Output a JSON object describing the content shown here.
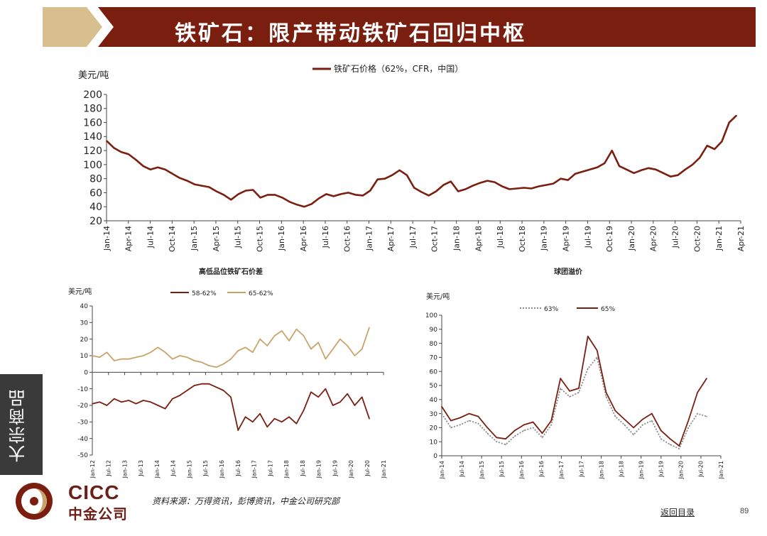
{
  "header": {
    "title": "铁矿石：限产带动铁矿石回归中枢"
  },
  "sidebar_tab": {
    "label": "大宗商品"
  },
  "colors": {
    "brand_dark_red": "#7a1f10",
    "banner_tan": "#d8c08e",
    "series_dark": "#7a1f10",
    "series_tan": "#c9a46a",
    "series_gray": "#8a8a8a"
  },
  "footer": {
    "logo_en": "CICC",
    "logo_cn": "中金公司",
    "source": "资料来源：万得资讯，彭博资讯，中金公司研究部",
    "back_link": "返回目录",
    "page_number": "89"
  },
  "chart_data": [
    {
      "id": "main",
      "type": "line",
      "title": "",
      "ylabel": "美元/吨",
      "xlabel": "",
      "ylim": [
        20,
        200
      ],
      "yticks": [
        20,
        40,
        60,
        80,
        100,
        120,
        140,
        160,
        180,
        200
      ],
      "xlim": [
        0,
        87
      ],
      "xticks": [
        "Jan-14",
        "Apr-14",
        "Jul-14",
        "Oct-14",
        "Jan-15",
        "Apr-15",
        "Jul-15",
        "Oct-15",
        "Jan-16",
        "Apr-16",
        "Jul-16",
        "Oct-16",
        "Jan-17",
        "Apr-17",
        "Jul-17",
        "Oct-17",
        "Jan-18",
        "Apr-18",
        "Jul-18",
        "Oct-18",
        "Jan-19",
        "Apr-19",
        "Jul-19",
        "Oct-19",
        "Jan-20",
        "Apr-20",
        "Jul-20",
        "Oct-20",
        "Jan-21",
        "Apr-21"
      ],
      "legend_position": "top-center",
      "series": [
        {
          "name": "铁矿石价格（62%，CFR，中国）",
          "color": "#7a1f10",
          "x": [
            0,
            1,
            2,
            3,
            4,
            5,
            6,
            7,
            8,
            9,
            10,
            11,
            12,
            13,
            14,
            15,
            16,
            17,
            18,
            19,
            20,
            21,
            22,
            23,
            24,
            25,
            26,
            27,
            28,
            29,
            30,
            31,
            32,
            33,
            34,
            35,
            36,
            37,
            38,
            39,
            40,
            41,
            42,
            43,
            44,
            45,
            46,
            47,
            48,
            49,
            50,
            51,
            52,
            53,
            54,
            55,
            56,
            57,
            58,
            59,
            60,
            61,
            62,
            63,
            64,
            65,
            66,
            67,
            68,
            69,
            70,
            71,
            72,
            73,
            74,
            75,
            76,
            77,
            78,
            79,
            80,
            81,
            82,
            83,
            84,
            85,
            86
          ],
          "values": [
            134,
            124,
            118,
            115,
            107,
            98,
            93,
            96,
            93,
            87,
            81,
            77,
            72,
            70,
            68,
            62,
            57,
            50,
            58,
            63,
            64,
            53,
            57,
            57,
            53,
            47,
            43,
            40,
            44,
            52,
            58,
            55,
            58,
            60,
            57,
            56,
            63,
            79,
            80,
            85,
            92,
            85,
            67,
            61,
            56,
            62,
            71,
            76,
            62,
            65,
            70,
            74,
            77,
            75,
            69,
            65,
            66,
            67,
            66,
            69,
            71,
            73,
            80,
            78,
            87,
            90,
            93,
            96,
            102,
            120,
            98,
            93,
            88,
            92,
            95,
            93,
            88,
            83,
            85,
            93,
            100,
            110,
            127,
            122,
            133,
            160,
            170
          ]
        }
      ]
    },
    {
      "id": "premium-spread",
      "type": "line",
      "title": "高低品位铁矿石价差",
      "ylabel": "美元/吨",
      "ylim": [
        -50,
        40
      ],
      "yticks": [
        -50,
        -40,
        -30,
        -20,
        -10,
        0,
        10,
        20,
        30,
        40
      ],
      "xticks": [
        "Jan-12",
        "Jul-12",
        "Jan-13",
        "Jul-13",
        "Jan-14",
        "Jul-14",
        "Jan-15",
        "Jul-15",
        "Jan-16",
        "Jul-16",
        "Jan-17",
        "Jul-17",
        "Jan-18",
        "Jul-18",
        "Jan-19",
        "Jul-19",
        "Jan-20",
        "Jul-20",
        "Jan-21"
      ],
      "legend_position": "top-right",
      "series": [
        {
          "name": "58-62%",
          "color": "#7a1f10",
          "x": [
            0,
            1,
            2,
            3,
            4,
            5,
            6,
            7,
            8,
            9,
            10,
            11,
            12,
            13,
            14,
            15,
            16,
            17,
            18,
            19,
            20,
            21,
            22,
            23,
            24,
            25,
            26,
            27,
            28,
            29,
            30,
            31,
            32,
            33,
            34,
            35,
            36,
            37,
            38
          ],
          "values": [
            -19,
            -18,
            -20,
            -16,
            -18,
            -17,
            -19,
            -17,
            -18,
            -20,
            -22,
            -16,
            -14,
            -11,
            -8,
            -7,
            -7,
            -9,
            -11,
            -15,
            -35,
            -27,
            -30,
            -25,
            -33,
            -28,
            -30,
            -27,
            -31,
            -23,
            -12,
            -15,
            -10,
            -20,
            -18,
            -13,
            -20,
            -15,
            -28
          ]
        },
        {
          "name": "65-62%",
          "color": "#c9a46a",
          "x": [
            0,
            1,
            2,
            3,
            4,
            5,
            6,
            7,
            8,
            9,
            10,
            11,
            12,
            13,
            14,
            15,
            16,
            17,
            18,
            19,
            20,
            21,
            22,
            23,
            24,
            25,
            26,
            27,
            28,
            29,
            30,
            31,
            32,
            33,
            34,
            35,
            36,
            37,
            38
          ],
          "values": [
            10,
            9,
            12,
            7,
            8,
            8,
            9,
            10,
            12,
            15,
            12,
            8,
            10,
            9,
            7,
            6,
            4,
            3,
            5,
            8,
            13,
            15,
            12,
            20,
            16,
            22,
            25,
            19,
            26,
            22,
            14,
            18,
            8,
            14,
            20,
            16,
            10,
            14,
            27
          ]
        }
      ]
    },
    {
      "id": "pellet-premium",
      "type": "line",
      "title": "球团溢价",
      "ylabel": "美元/吨",
      "ylim": [
        0,
        100
      ],
      "yticks": [
        0,
        10,
        20,
        30,
        40,
        50,
        60,
        70,
        80,
        90,
        100
      ],
      "xticks": [
        "Jan-14",
        "Jul-14",
        "Jan-15",
        "Jul-15",
        "Jan-16",
        "Jul-16",
        "Jan-17",
        "Jul-17",
        "Jan-18",
        "Jul-18",
        "Jan-19",
        "Jul-19",
        "Jan-20",
        "Jul-20",
        "Jan-21"
      ],
      "legend_position": "top-center",
      "series": [
        {
          "name": "63%",
          "color": "#8a8a8a",
          "dashed": true,
          "x": [
            0,
            1,
            2,
            3,
            4,
            5,
            6,
            7,
            8,
            9,
            10,
            11,
            12,
            13,
            14,
            15,
            16,
            17,
            18,
            19,
            20,
            21,
            22,
            23,
            24,
            25,
            26,
            27,
            28,
            29
          ],
          "values": [
            30,
            20,
            22,
            25,
            23,
            16,
            10,
            8,
            14,
            18,
            20,
            13,
            22,
            48,
            42,
            45,
            62,
            70,
            42,
            28,
            22,
            15,
            22,
            25,
            12,
            8,
            5,
            20,
            30,
            28
          ]
        },
        {
          "name": "65%",
          "color": "#7a1f10",
          "dashed": false,
          "x": [
            0,
            1,
            2,
            3,
            4,
            5,
            6,
            7,
            8,
            9,
            10,
            11,
            12,
            13,
            14,
            15,
            16,
            17,
            18,
            19,
            20,
            21,
            22,
            23,
            24,
            25,
            26,
            27,
            28,
            29
          ],
          "values": [
            35,
            25,
            27,
            30,
            28,
            20,
            13,
            12,
            18,
            22,
            24,
            16,
            25,
            55,
            46,
            48,
            85,
            75,
            45,
            32,
            26,
            20,
            26,
            30,
            18,
            12,
            7,
            25,
            45,
            55
          ]
        }
      ]
    }
  ]
}
